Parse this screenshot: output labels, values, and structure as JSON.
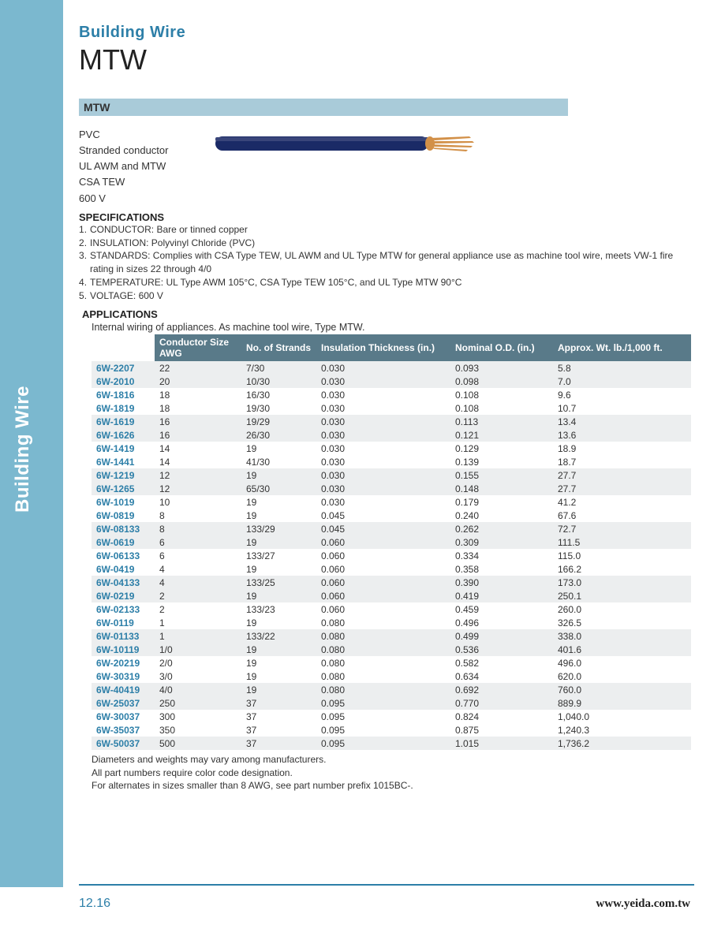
{
  "colors": {
    "sidebar_bg": "#7bb8cf",
    "sidebar_text": "#ffffff",
    "accent": "#2d7fa8",
    "section_banner": "#a9cbd9",
    "table_header_bg": "#597a89",
    "table_header_text": "#ffffff",
    "row_shade": "#eceeef",
    "body_text": "#333333",
    "page_bg": "#ffffff"
  },
  "sidebar_label": "Building Wire",
  "header": {
    "category": "Building Wire",
    "product": "MTW"
  },
  "section_title": "MTW",
  "intro_lines": [
    "PVC",
    "Stranded conductor",
    "UL AWM and MTW",
    "CSA TEW",
    "600 V"
  ],
  "wire_image": {
    "body_color": "#1a2a66",
    "core_color": "#d29048",
    "highlight_color": "#39457a"
  },
  "specifications": {
    "heading": "SPECIFICATIONS",
    "items": [
      "CONDUCTOR: Bare or tinned copper",
      "INSULATION: Polyvinyl Chloride (PVC)",
      "STANDARDS: Complies with CSA Type TEW, UL AWM and UL Type MTW for general appliance use as machine tool wire, meets VW-1 fire rating in sizes 22 through 4/0",
      "TEMPERATURE: UL Type AWM 105°C, CSA Type TEW 105°C, and UL Type MTW 90°C",
      "VOLTAGE: 600 V"
    ]
  },
  "applications": {
    "heading": "APPLICATIONS",
    "text": "Internal wiring of appliances. As machine tool wire, Type MTW."
  },
  "table": {
    "columns": [
      "",
      "Conductor Size AWG",
      "No. of Strands",
      "Insulation Thickness (in.)",
      "Nominal O.D. (in.)",
      "Approx. Wt. lb./1,000 ft."
    ],
    "col_widths": [
      "80px",
      "110px",
      "95px",
      "170px",
      "130px",
      "auto"
    ],
    "shade_groups": 2,
    "rows": [
      [
        "6W-2207",
        "22",
        "7/30",
        "0.030",
        "0.093",
        "5.8"
      ],
      [
        "6W-2010",
        "20",
        "10/30",
        "0.030",
        "0.098",
        "7.0"
      ],
      [
        "6W-1816",
        "18",
        "16/30",
        "0.030",
        "0.108",
        "9.6"
      ],
      [
        "6W-1819",
        "18",
        "19/30",
        "0.030",
        "0.108",
        "10.7"
      ],
      [
        "6W-1619",
        "16",
        "19/29",
        "0.030",
        "0.113",
        "13.4"
      ],
      [
        "6W-1626",
        "16",
        "26/30",
        "0.030",
        "0.121",
        "13.6"
      ],
      [
        "6W-1419",
        "14",
        "19",
        "0.030",
        "0.129",
        "18.9"
      ],
      [
        "6W-1441",
        "14",
        "41/30",
        "0.030",
        "0.139",
        "18.7"
      ],
      [
        "6W-1219",
        "12",
        "19",
        "0.030",
        "0.155",
        "27.7"
      ],
      [
        "6W-1265",
        "12",
        "65/30",
        "0.030",
        "0.148",
        "27.7"
      ],
      [
        "6W-1019",
        "10",
        "19",
        "0.030",
        "0.179",
        "41.2"
      ],
      [
        "6W-0819",
        "8",
        "19",
        "0.045",
        "0.240",
        "67.6"
      ],
      [
        "6W-08133",
        "8",
        "133/29",
        "0.045",
        "0.262",
        "72.7"
      ],
      [
        "6W-0619",
        "6",
        "19",
        "0.060",
        "0.309",
        "111.5"
      ],
      [
        "6W-06133",
        "6",
        "133/27",
        "0.060",
        "0.334",
        "115.0"
      ],
      [
        "6W-0419",
        "4",
        "19",
        "0.060",
        "0.358",
        "166.2"
      ],
      [
        "6W-04133",
        "4",
        "133/25",
        "0.060",
        "0.390",
        "173.0"
      ],
      [
        "6W-0219",
        "2",
        "19",
        "0.060",
        "0.419",
        "250.1"
      ],
      [
        "6W-02133",
        "2",
        "133/23",
        "0.060",
        "0.459",
        "260.0"
      ],
      [
        "6W-0119",
        "1",
        "19",
        "0.080",
        "0.496",
        "326.5"
      ],
      [
        "6W-01133",
        "1",
        "133/22",
        "0.080",
        "0.499",
        "338.0"
      ],
      [
        "6W-10119",
        "1/0",
        "19",
        "0.080",
        "0.536",
        "401.6"
      ],
      [
        "6W-20219",
        "2/0",
        "19",
        "0.080",
        "0.582",
        "496.0"
      ],
      [
        "6W-30319",
        "3/0",
        "19",
        "0.080",
        "0.634",
        "620.0"
      ],
      [
        "6W-40419",
        "4/0",
        "19",
        "0.080",
        "0.692",
        "760.0"
      ],
      [
        "6W-25037",
        "250",
        "37",
        "0.095",
        "0.770",
        "889.9"
      ],
      [
        "6W-30037",
        "300",
        "37",
        "0.095",
        "0.824",
        "1,040.0"
      ],
      [
        "6W-35037",
        "350",
        "37",
        "0.095",
        "0.875",
        "1,240.3"
      ],
      [
        "6W-50037",
        "500",
        "37",
        "0.095",
        "1.015",
        "1,736.2"
      ]
    ]
  },
  "footnotes": [
    "Diameters and weights may vary among manufacturers.",
    "All part numbers require color code designation.",
    "For alternates in sizes smaller than 8 AWG, see part number prefix 1015BC-."
  ],
  "footer": {
    "page": "12.16",
    "site": "www.yeida.com.tw"
  }
}
